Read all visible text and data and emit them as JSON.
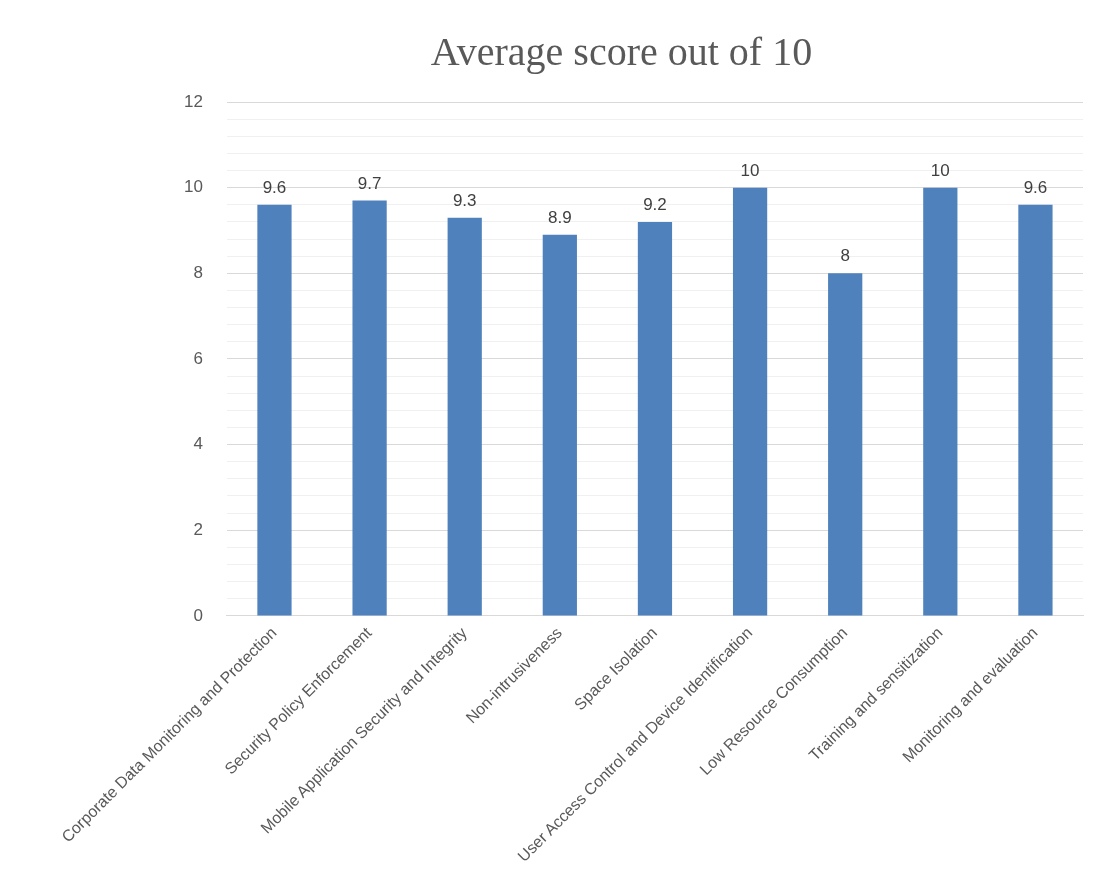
{
  "chart_data": {
    "type": "bar",
    "title": "Average score out of 10",
    "categories": [
      "Corporate Data Monitoring and Protection",
      "Security Policy Enforcement",
      "Mobile Application Security and Integrity",
      "Non-intrusiveness",
      "Space Isolation",
      "User Access Control and Device Identification",
      "Low Resource Consumption",
      "Training and sensitization",
      "Monitoring and evaluation"
    ],
    "values": [
      9.6,
      9.7,
      9.3,
      8.9,
      9.2,
      10,
      8,
      10,
      9.6
    ],
    "color": "#4f81bd",
    "ylim": [
      0,
      12
    ],
    "yticks": [
      0,
      {
        "value": 0.4,
        "label": null
      },
      {
        "value": 0.8,
        "label": null
      },
      {
        "value": 1.2,
        "label": null
      },
      {
        "value": 1.6,
        "label": null
      },
      2,
      {
        "value": 2.4,
        "label": null
      },
      {
        "value": 2.8,
        "label": null
      },
      {
        "value": 3.2,
        "label": null
      },
      {
        "value": 3.6,
        "label": null
      },
      4,
      {
        "value": 4.4,
        "label": null
      },
      {
        "value": 4.8,
        "label": null
      },
      {
        "value": 5.2,
        "label": null
      },
      {
        "value": 5.6,
        "label": null
      },
      6,
      {
        "value": 6.4,
        "label": null
      },
      {
        "value": 6.8,
        "label": null
      },
      {
        "value": 7.2,
        "label": null
      },
      {
        "value": 7.6,
        "label": null
      },
      8,
      {
        "value": 8.4,
        "label": null
      },
      {
        "value": 8.8,
        "label": null
      },
      {
        "value": 9.2,
        "label": null
      },
      {
        "value": 9.6,
        "label": null
      },
      10,
      {
        "value": 10.4,
        "label": null
      },
      {
        "value": 10.8,
        "label": null
      },
      {
        "value": 11.2,
        "label": null
      },
      {
        "value": 11.6,
        "label": null
      },
      12
    ],
    "grid": true,
    "data_labels": true
  }
}
